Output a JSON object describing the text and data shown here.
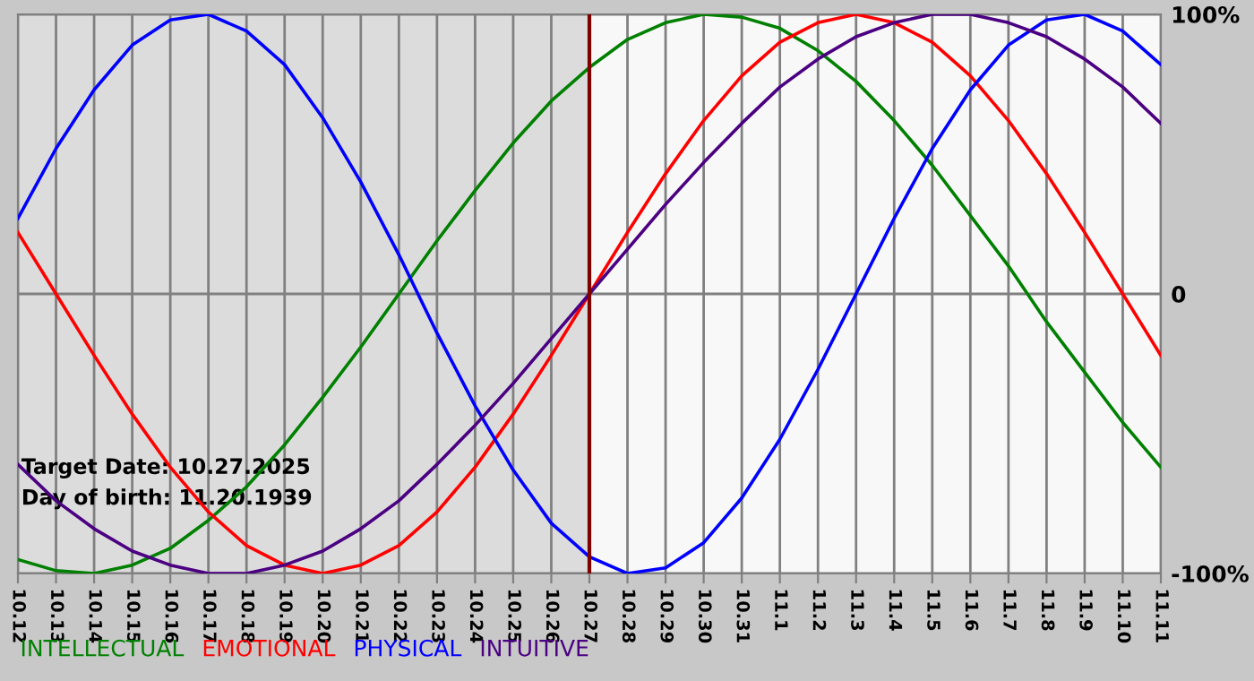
{
  "chart_data": {
    "type": "line",
    "categories": [
      "10.12",
      "10.13",
      "10.14",
      "10.15",
      "10.16",
      "10.17",
      "10.18",
      "10.19",
      "10.20",
      "10.21",
      "10.22",
      "10.23",
      "10.24",
      "10.25",
      "10.26",
      "10.27",
      "10.28",
      "10.29",
      "10.30",
      "10.31",
      "11.1",
      "11.2",
      "11.3",
      "11.4",
      "11.5",
      "11.6",
      "11.7",
      "11.8",
      "11.9",
      "11.10",
      "11.11"
    ],
    "series": [
      {
        "name": "INTELLECTUAL",
        "color": "#008000",
        "values": [
          -95,
          -99,
          -100,
          -97,
          -91,
          -81,
          -69,
          -54,
          -37,
          -19,
          0,
          19,
          37,
          54,
          69,
          81,
          91,
          97,
          100,
          99,
          95,
          87,
          76,
          62,
          46,
          28,
          10,
          -10,
          -28,
          -46,
          -62
        ]
      },
      {
        "name": "EMOTIONAL",
        "color": "#ff0000",
        "values": [
          22,
          0,
          -22,
          -43,
          -62,
          -78,
          -90,
          -97,
          -100,
          -97,
          -90,
          -78,
          -62,
          -43,
          -22,
          0,
          22,
          43,
          62,
          78,
          90,
          97,
          100,
          97,
          90,
          78,
          62,
          43,
          22,
          0,
          -22
        ]
      },
      {
        "name": "PHYSICAL",
        "color": "#0000ff",
        "values": [
          27,
          52,
          73,
          89,
          98,
          100,
          94,
          82,
          63,
          40,
          14,
          -14,
          -40,
          -63,
          -82,
          -94,
          -100,
          -98,
          -89,
          -73,
          -52,
          -27,
          0,
          27,
          52,
          73,
          89,
          98,
          100,
          94,
          82
        ]
      },
      {
        "name": "INTUITIVE",
        "color": "#4b0082",
        "values": [
          -61,
          -74,
          -84,
          -92,
          -97,
          -100,
          -100,
          -97,
          -92,
          -84,
          -74,
          -61,
          -47,
          -32,
          -16,
          0,
          16,
          32,
          47,
          61,
          74,
          84,
          92,
          97,
          100,
          100,
          97,
          92,
          84,
          74,
          61
        ]
      }
    ],
    "ylim": [
      -100,
      100
    ],
    "yticks": [
      {
        "value": 100,
        "label": "100%"
      },
      0,
      {
        "value": -100,
        "label": "-100%"
      }
    ],
    "grid": true,
    "legend": "bottom left",
    "marker": "none",
    "line_style": "solid",
    "ref_lines": [
      {
        "axis": "x",
        "value": "10.27",
        "color": "#800000"
      }
    ],
    "bands": [
      {
        "axis": "x",
        "from": "10.12",
        "to": "10.27",
        "color": "#dcdcdc"
      }
    ],
    "annotations": [
      "Target Date: 10.27.2025",
      "Day of birth: 11.20.1939"
    ]
  }
}
